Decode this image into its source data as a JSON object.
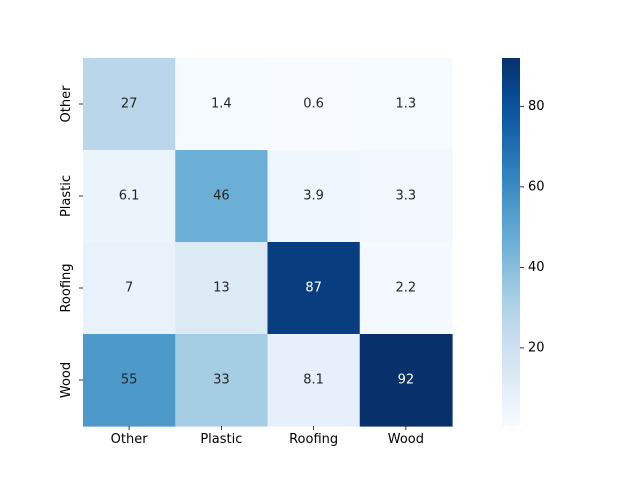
{
  "chart_data": {
    "type": "heatmap",
    "title": "",
    "xlabel": "",
    "ylabel": "",
    "x_categories": [
      "Other",
      "Plastic",
      "Roofing",
      "Wood"
    ],
    "y_categories": [
      "Other",
      "Plastic",
      "Roofing",
      "Wood"
    ],
    "values": [
      [
        27,
        1.4,
        0.6,
        1.3
      ],
      [
        6.1,
        46,
        3.9,
        3.3
      ],
      [
        7,
        13,
        87,
        2.2
      ],
      [
        55,
        33,
        8.1,
        92
      ]
    ],
    "cell_labels": [
      [
        "27",
        "1.4",
        "0.6",
        "1.3"
      ],
      [
        "6.1",
        "46",
        "3.9",
        "3.3"
      ],
      [
        "7",
        "13",
        "87",
        "2.2"
      ],
      [
        "55",
        "33",
        "8.1",
        "92"
      ]
    ],
    "colormap": "Blues",
    "vmin": 0.6,
    "vmax": 92,
    "colorbar_ticks": [
      20,
      40,
      60,
      80
    ],
    "colorbar_tick_labels": [
      "20",
      "40",
      "60",
      "80"
    ],
    "grid": false,
    "legend": "colorbar-right"
  }
}
